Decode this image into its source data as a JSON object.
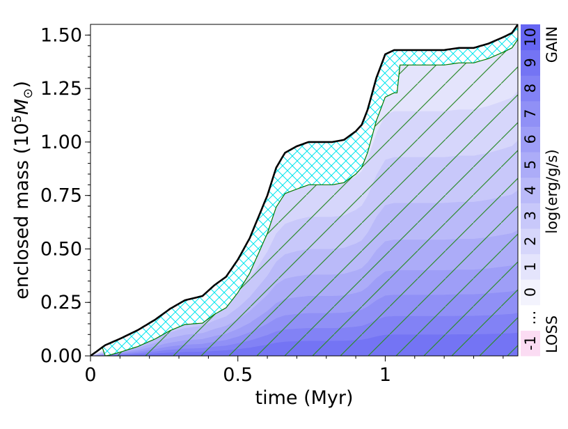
{
  "chart_data": {
    "type": "area",
    "title": "",
    "xlabel": "time (Myr)",
    "ylabel_main": "enclosed mass (10",
    "ylabel_exp": "5",
    "ylabel_sym": "M",
    "ylabel_sub": "⊙",
    "ylabel_close": ")",
    "xlim": [
      0,
      1.45
    ],
    "ylim": [
      0,
      1.55
    ],
    "xticks": [
      {
        "value": 0,
        "label": "0"
      },
      {
        "value": 0.5,
        "label": "0.5"
      },
      {
        "value": 1.0,
        "label": "1"
      }
    ],
    "yticks": [
      {
        "value": 0.0,
        "label": "0.00"
      },
      {
        "value": 0.25,
        "label": "0.25"
      },
      {
        "value": 0.5,
        "label": "0.50"
      },
      {
        "value": 0.75,
        "label": "0.75"
      },
      {
        "value": 1.0,
        "label": "1.00"
      },
      {
        "value": 1.25,
        "label": "1.25"
      },
      {
        "value": 1.5,
        "label": "1.50"
      }
    ],
    "total_mass": {
      "x": [
        0,
        0.05,
        0.1,
        0.16,
        0.22,
        0.27,
        0.32,
        0.38,
        0.42,
        0.46,
        0.5,
        0.54,
        0.57,
        0.6,
        0.63,
        0.66,
        0.7,
        0.74,
        0.78,
        0.82,
        0.86,
        0.9,
        0.92,
        0.94,
        0.97,
        1.0,
        1.03,
        1.06,
        1.1,
        1.15,
        1.2,
        1.25,
        1.3,
        1.35,
        1.4,
        1.43,
        1.45
      ],
      "y": [
        0,
        0.05,
        0.08,
        0.12,
        0.17,
        0.22,
        0.26,
        0.28,
        0.33,
        0.37,
        0.45,
        0.55,
        0.65,
        0.75,
        0.88,
        0.95,
        0.98,
        1.0,
        1.0,
        1.0,
        1.01,
        1.05,
        1.08,
        1.15,
        1.3,
        1.41,
        1.43,
        1.43,
        1.43,
        1.43,
        1.43,
        1.44,
        1.44,
        1.46,
        1.49,
        1.51,
        1.55
      ]
    },
    "colorbar": {
      "label": "log(erg/g/s)",
      "gain_label": "GAIN",
      "loss_label": "LOSS",
      "ticks": [
        "-1",
        "…",
        "0",
        "1",
        "2",
        "3",
        "4",
        "5",
        "6",
        "7",
        "8",
        "9",
        "10"
      ],
      "gain_colors": [
        "#f3f3fd",
        "#e4e4fc",
        "#d6d6fb",
        "#c8c8fa",
        "#babaf9",
        "#acacf8",
        "#9e9ef7",
        "#9090f6",
        "#8282f5",
        "#7474f4",
        "#6666f3"
      ],
      "loss_color": "#fbdcf3"
    },
    "colors": {
      "total_mass_line": "#000000",
      "convective_hatch": "#00e5ee",
      "burning_contour": "#007a00",
      "hatch_lines": "#2e8b2e"
    }
  }
}
